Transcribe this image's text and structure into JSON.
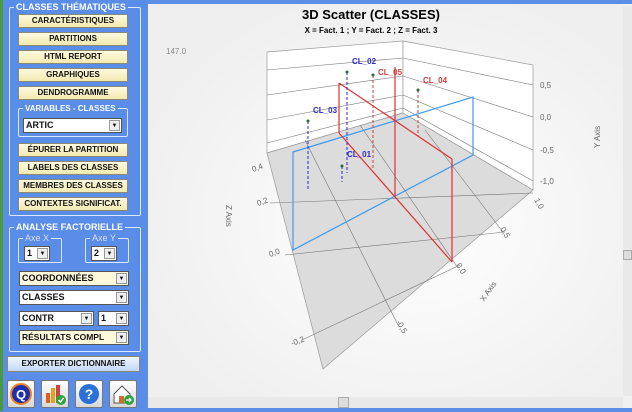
{
  "left": {
    "classes_group": "CLASSES THÉMATIQUES",
    "buttons": [
      "CARACTÉRISTIQUES",
      "PARTITIONS",
      "HTML REPORT",
      "GRAPHIQUES",
      "DENDROGRAMME"
    ],
    "variables_group": "VARIABLES - CLASSES",
    "variable_select": "ARTIC",
    "buttons2": [
      "ÉPURER LA PARTITION",
      "LABELS DES CLASSES",
      "MEMBRES DES CLASSES",
      "CONTEXTES SIGNIFICAT."
    ],
    "analyse_group": "ANALYSE FACTORIELLE",
    "axe_x_label": "Axe X",
    "axe_x": "1",
    "axe_y_label": "Axe Y",
    "axe_y": "2",
    "coord_select": "COORDONNÉES",
    "classes_select": "CLASSES",
    "contr_select": "CONTR",
    "contr_num": "1",
    "results_select": "RÉSULTATS COMPL",
    "export_button": "EXPORTER DICTIONNAIRE",
    "icons": [
      "q-logo-icon",
      "chart-check-icon",
      "help-icon",
      "home-exit-icon"
    ]
  },
  "chart_data": {
    "type": "scatter",
    "title": "3D Scatter (CLASSES)",
    "subtitle": "X = Fact. 1 ; Y = Fact. 2 ; Z = Fact. 3",
    "corner_value": "147.0",
    "xlabel": "X Axis",
    "ylabel": "Y Axis",
    "zlabel": "Z Axis",
    "x_ticks": [
      "-0,5",
      "0,0",
      "0,5",
      "1,0"
    ],
    "y_ticks": [
      "0,5",
      "0,0",
      "-0,5",
      "-1,0"
    ],
    "z_ticks": [
      "0,4",
      "0,2",
      "0,0",
      "-0,2"
    ],
    "points": [
      {
        "label": "CL_01",
        "color": "#2a2ad0"
      },
      {
        "label": "CL_02",
        "color": "#2a2ad0"
      },
      {
        "label": "CL_03",
        "color": "#2a2ad0"
      },
      {
        "label": "CL_04",
        "color": "#d04040"
      },
      {
        "label": "CL_05",
        "color": "#d04040"
      }
    ]
  }
}
